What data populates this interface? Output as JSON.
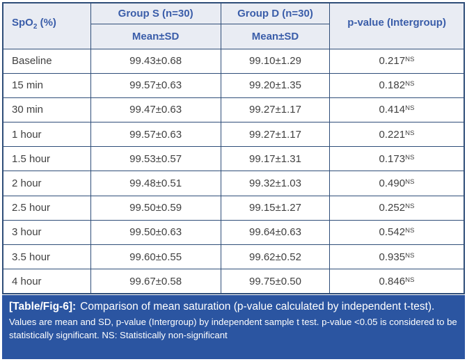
{
  "colors": {
    "border": "#2e4d78",
    "header_bg": "#e9ecf3",
    "header_text": "#3a5da9",
    "body_text": "#404040",
    "caption_bg": "#2b55a1",
    "caption_text": "#ffffff"
  },
  "table": {
    "spo2_header": {
      "prefix": "SpO",
      "sub": "2",
      "suffix": " (%)"
    },
    "group_s_header": "Group S (n=30)",
    "group_d_header": "Group D (n=30)",
    "mean_sd_s": "Mean±SD",
    "mean_sd_d": "Mean±SD",
    "pvalue_header": "p-value (Intergroup)",
    "rows": [
      {
        "time": "Baseline",
        "group_s": "99.43±0.68",
        "group_d": "99.10±1.29",
        "p_value": "0.217",
        "p_flag": "NS"
      },
      {
        "time": "15 min",
        "group_s": "99.57±0.63",
        "group_d": "99.20±1.35",
        "p_value": "0.182",
        "p_flag": "NS"
      },
      {
        "time": "30 min",
        "group_s": "99.47±0.63",
        "group_d": "99.27±1.17",
        "p_value": "0.414",
        "p_flag": "NS"
      },
      {
        "time": "1 hour",
        "group_s": "99.57±0.63",
        "group_d": "99.27±1.17",
        "p_value": "0.221",
        "p_flag": "NS"
      },
      {
        "time": "1.5 hour",
        "group_s": "99.53±0.57",
        "group_d": "99.17±1.31",
        "p_value": "0.173",
        "p_flag": "NS"
      },
      {
        "time": "2 hour",
        "group_s": "99.48±0.51",
        "group_d": "99.32±1.03",
        "p_value": "0.490",
        "p_flag": "NS"
      },
      {
        "time": "2.5 hour",
        "group_s": "99.50±0.59",
        "group_d": "99.15±1.27",
        "p_value": "0.252",
        "p_flag": "NS"
      },
      {
        "time": "3 hour",
        "group_s": "99.50±0.63",
        "group_d": "99.64±0.63",
        "p_value": "0.542",
        "p_flag": "NS"
      },
      {
        "time": "3.5 hour",
        "group_s": "99.60±0.55",
        "group_d": "99.62±0.52",
        "p_value": "0.935",
        "p_flag": "NS"
      },
      {
        "time": "4 hour",
        "group_s": "99.67±0.58",
        "group_d": "99.75±0.50",
        "p_value": "0.846",
        "p_flag": "NS"
      }
    ]
  },
  "caption": {
    "label": "[Table/Fig-6]:",
    "text": "Comparison of mean saturation (p-value calculated by independent t-test).",
    "note": "Values are mean and SD, p-value (Intergroup) by independent sample t test. p-value <0.05 is considered to be statistically significant. NS: Statistically non-significant"
  }
}
